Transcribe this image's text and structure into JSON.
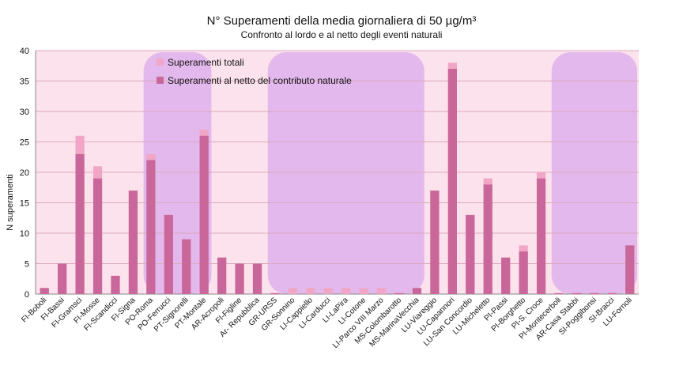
{
  "chart_data": {
    "type": "bar",
    "title": "N° Superamenti della media giornaliera di 50 µg/m³",
    "subtitle": "Confronto al lordo e al netto degli eventi naturali",
    "xlabel": "",
    "ylabel": "N superamenti",
    "ylim": [
      0,
      40
    ],
    "yticks": [
      0,
      5,
      10,
      15,
      20,
      25,
      30,
      35,
      40
    ],
    "grid": true,
    "legend_position": "top-left",
    "categories": [
      "FI-Boboli",
      "FI-Bassi",
      "FI-Gramsci",
      "FI-Mosse",
      "FI-Scandicci",
      "FI-Signa",
      "PO-Roma",
      "PO-Ferrucci",
      "PT-Signorelli",
      "PT-Montale",
      "AR-Acropoli",
      "FI-Figline",
      "Ar- Repubblica",
      "GR-URSS",
      "GR-Sonnino",
      "LI-Cappiello",
      "LI-Carducci",
      "LI-LaPira",
      "LI-Cotone",
      "LI-Parco VIII Marzo",
      "MS-Colombarotto",
      "MS-MarinaVecchia",
      "LU-Viareggio",
      "LU-Capannori",
      "LU-San Concordio",
      "LU-Micheletto",
      "PI-Passi",
      "PI-Borghetto",
      "PI-S. Croce",
      "PI-Montecerboli",
      "AR-Casa Stabbi",
      "SI-Poggibonsi",
      "SI-Bracci",
      "LU-Fornoli"
    ],
    "series": [
      {
        "name": "Superamenti  totali",
        "color": "#f0a6c4",
        "values": [
          1,
          5,
          26,
          21,
          3,
          17,
          23,
          13,
          9,
          27,
          6,
          5,
          5,
          0,
          1,
          1,
          1,
          1,
          1,
          1,
          0,
          1,
          17,
          38,
          13,
          19,
          6,
          8,
          20,
          0,
          0,
          0,
          0,
          8
        ]
      },
      {
        "name": "Superamenti al netto del contributo naturale",
        "color": "#c9679a",
        "values": [
          1,
          5,
          23,
          19,
          3,
          17,
          22,
          13,
          9,
          26,
          6,
          5,
          5,
          0,
          0,
          0,
          0,
          0,
          0,
          0,
          0,
          1,
          17,
          37,
          13,
          18,
          6,
          7,
          19,
          0,
          0,
          0,
          0,
          8
        ]
      }
    ],
    "colors": {
      "plot_background": "#fbe2ec",
      "highlight_region": "#e3b8ec",
      "grid": "#d9a9bf",
      "axis": "#888888",
      "text": "#111111"
    }
  }
}
